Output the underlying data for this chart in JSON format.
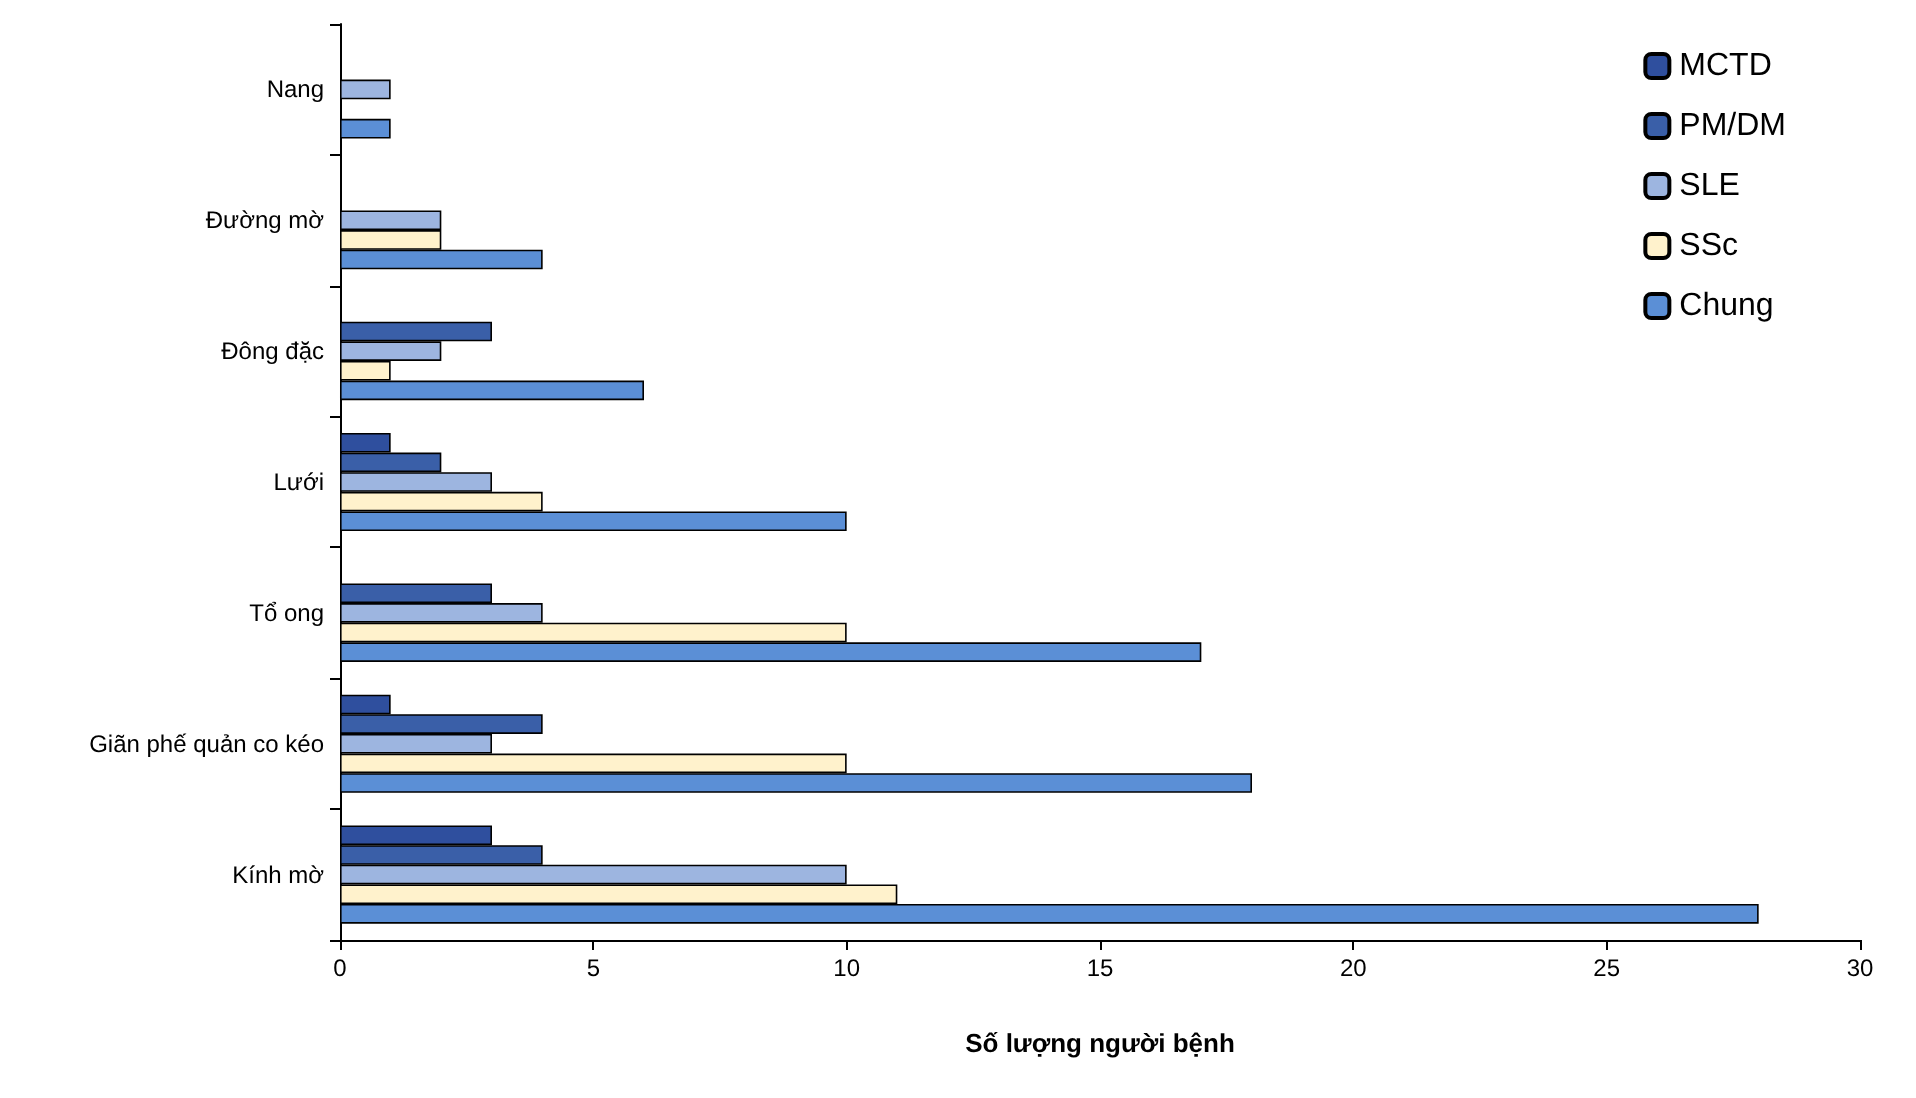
{
  "chart_data": {
    "type": "bar",
    "orientation": "horizontal",
    "xlabel": "Số lượng người bệnh",
    "categories": [
      "Nang",
      "Đường mờ",
      "Đông đặc",
      "Lưới",
      "Tổ ong",
      "Giãn phế quản co kéo",
      "Kính mờ"
    ],
    "series": [
      {
        "name": "MCTD",
        "color": "#2f4f9e",
        "values": [
          null,
          null,
          null,
          1,
          null,
          1,
          3
        ]
      },
      {
        "name": "PM/DM",
        "color": "#3a5fa8",
        "values": [
          null,
          null,
          3,
          2,
          3,
          4,
          4
        ]
      },
      {
        "name": "SLE",
        "color": "#9db5e0",
        "values": [
          1,
          2,
          2,
          3,
          4,
          3,
          10
        ]
      },
      {
        "name": "SSc",
        "color": "#fff2cc",
        "values": [
          null,
          2,
          1,
          4,
          10,
          10,
          11
        ]
      },
      {
        "name": "Chung",
        "color": "#5b8fd6",
        "values": [
          1,
          4,
          6,
          10,
          17,
          18,
          28
        ]
      }
    ],
    "xlim": [
      0,
      30
    ],
    "xticks": [
      0,
      5,
      10,
      15,
      20,
      25,
      30
    ],
    "grid": false,
    "legend": "top right"
  }
}
